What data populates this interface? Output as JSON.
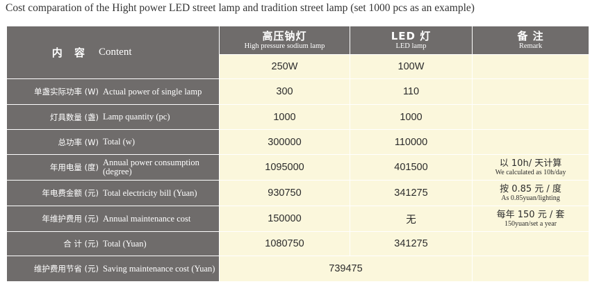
{
  "title": "Cost comparation of the Hight power LED street lamp and tradition street lamp (set 1000 pcs as an example)",
  "header": {
    "content_cn": "内 容",
    "content_en": "Content",
    "col_hps_cn": "高压钠灯",
    "col_hps_en": "High pressure sodium lamp",
    "col_led_cn": "LED 灯",
    "col_led_en": "LED lamp",
    "col_remark_cn": "备 注",
    "col_remark_en": "Remark",
    "hps_wattage": "250W",
    "led_wattage": "100W"
  },
  "rows": [
    {
      "cn": "单盏实际功率 (W)",
      "en": "Actual power of single lamp",
      "hps": "300",
      "led": "110",
      "remark_cn": "",
      "remark_en": ""
    },
    {
      "cn": "灯具数量 (盏)",
      "en": "Lamp quantity (pc)",
      "hps": "1000",
      "led": "1000",
      "remark_cn": "",
      "remark_en": ""
    },
    {
      "cn": "总功率 (W)",
      "en": "Total (w)",
      "hps": "300000",
      "led": "110000",
      "remark_cn": "",
      "remark_en": ""
    },
    {
      "cn": "年用电量 (度)",
      "en": "Annual power consumption (degree)",
      "hps": "1095000",
      "led": "401500",
      "remark_cn": "以 10h/ 天计算",
      "remark_en": "We calculated as 10h/day"
    },
    {
      "cn": "年电费金额 (元)",
      "en": "Total electricity bill (Yuan)",
      "hps": "930750",
      "led": "341275",
      "remark_cn": "按 0.85 元 / 度",
      "remark_en": "As 0.85yuan/lighting"
    },
    {
      "cn": "年维护费用 (元)",
      "en": "Annual maintenance cost",
      "hps": "150000",
      "led": "无",
      "remark_cn": "每年 150 元 / 套",
      "remark_en": "150yuan/set a year"
    },
    {
      "cn": "合 计 (元)",
      "en": "Total (Yuan)",
      "hps": "1080750",
      "led": "341275",
      "remark_cn": "",
      "remark_en": ""
    }
  ],
  "saving": {
    "cn": "维护费用节省 (元)",
    "en": "Saving maintenance cost (Yuan)",
    "value": "739475"
  }
}
